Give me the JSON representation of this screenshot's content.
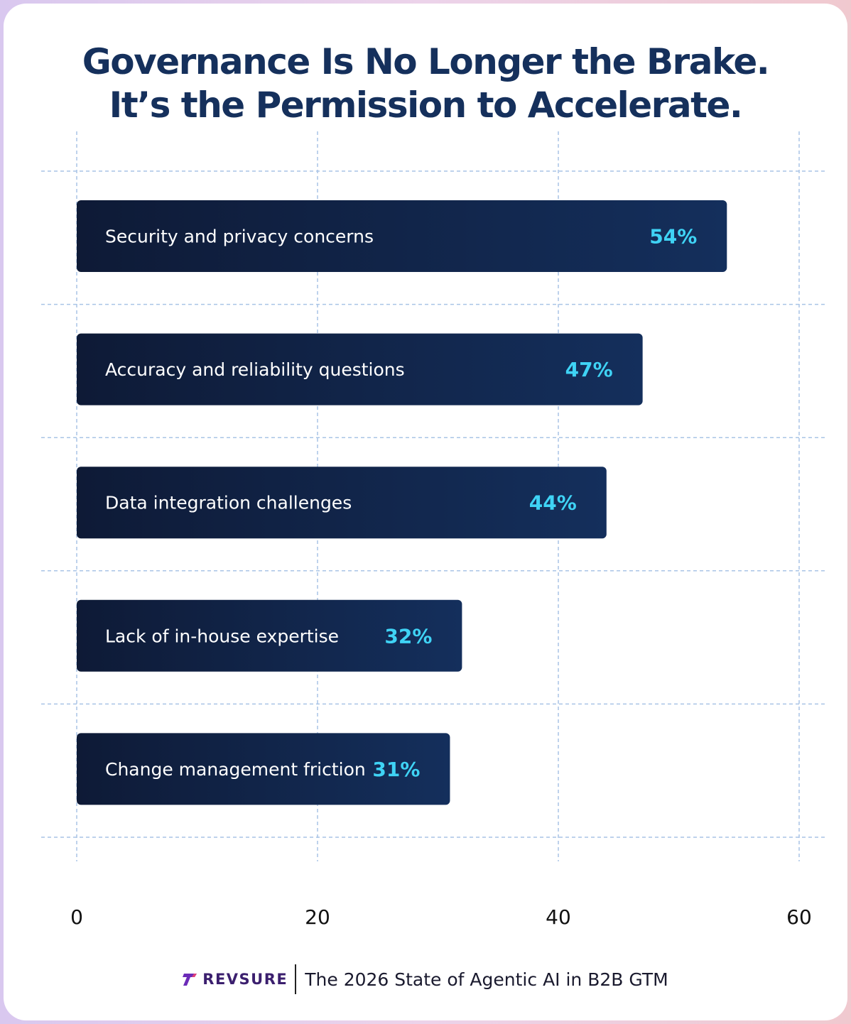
{
  "title": {
    "line1": "Governance Is No Longer the Brake.",
    "line2": "It’s the Permission to Accelerate."
  },
  "chart_data": {
    "type": "bar",
    "orientation": "horizontal",
    "categories": [
      "Security and privacy concerns",
      "Accuracy and reliability questions",
      "Data integration challenges",
      "Lack of in-house expertise",
      "Change management friction"
    ],
    "values": [
      54,
      47,
      44,
      32,
      31
    ],
    "value_labels": [
      "54%",
      "47%",
      "44%",
      "32%",
      "31%"
    ],
    "xlim": [
      0,
      60
    ],
    "x_ticks": [
      0,
      20,
      40,
      60
    ],
    "x_tick_labels": [
      "0",
      "20",
      "40",
      "60"
    ],
    "grid": true,
    "colors": {
      "bar_start": "#0e1a36",
      "bar_end": "#142f5c",
      "value_text": "#3fd3f5",
      "grid": "#a9c4e6",
      "title": "#15305c"
    }
  },
  "footer": {
    "brand": "REVSURE",
    "brand_icon": "revsure-logo-icon",
    "text": "The 2026 State of Agentic AI in B2B GTM"
  }
}
